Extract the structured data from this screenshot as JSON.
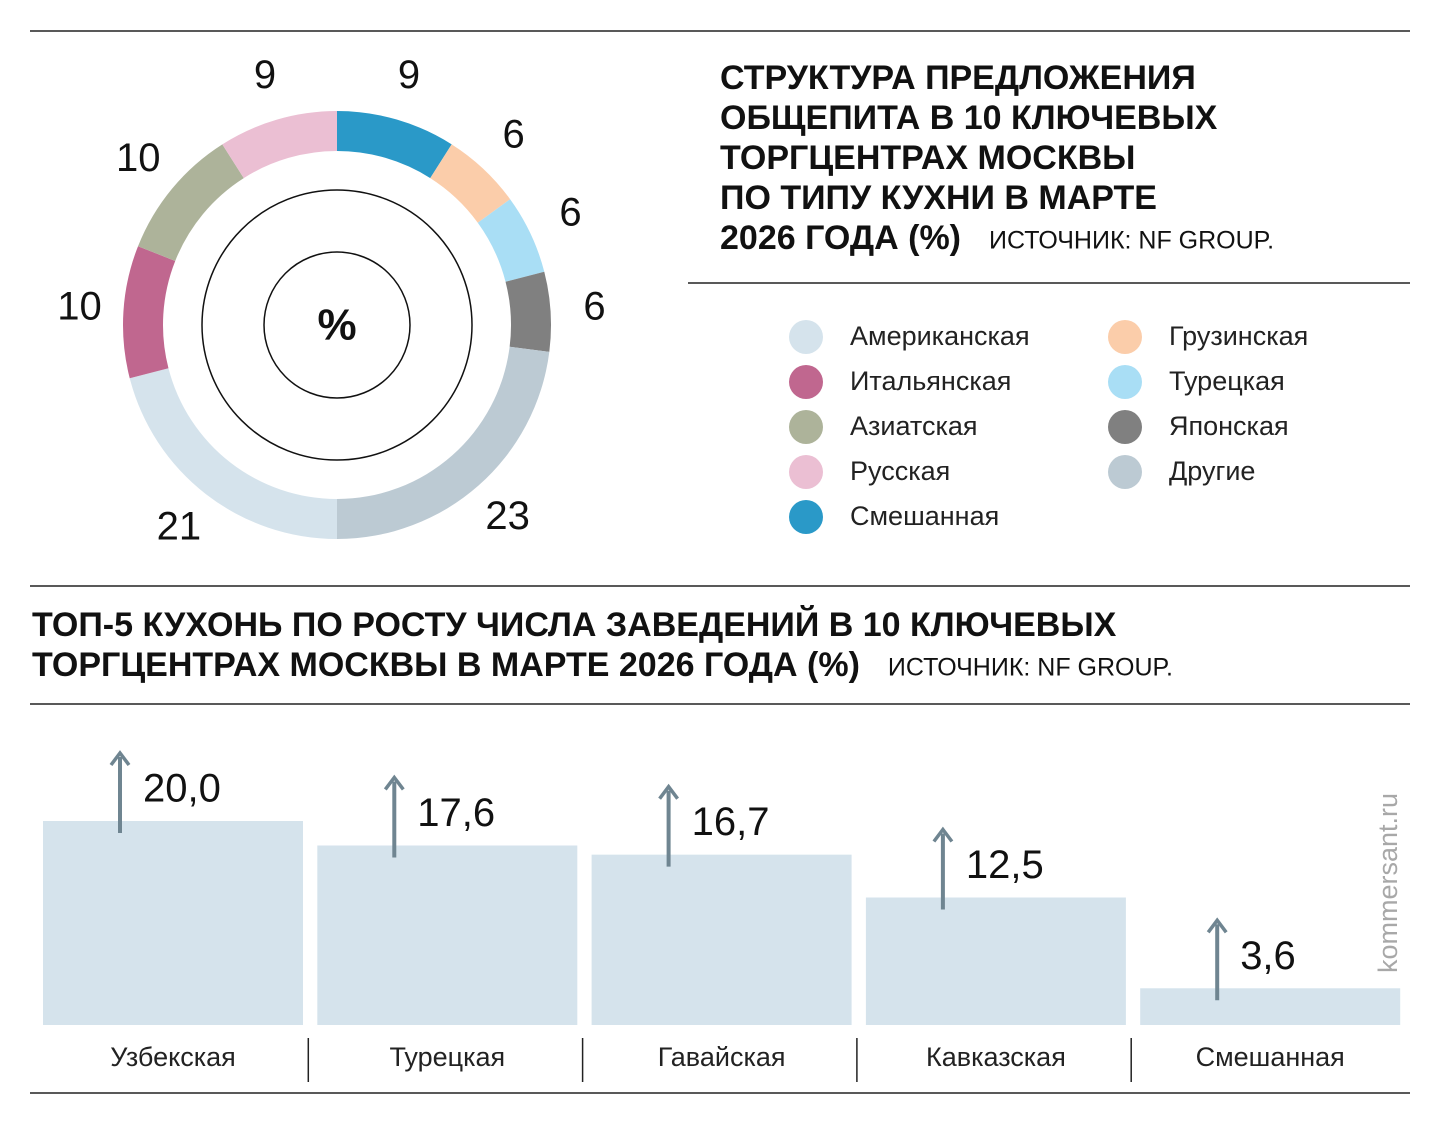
{
  "chart_data": [
    {
      "type": "donut",
      "title": [
        "СТРУКТУРА ПРЕДЛОЖЕНИЯ",
        "ОБЩЕПИТА В 10 КЛЮЧЕВЫХ",
        "ТОРГЦЕНТРАХ МОСКВЫ",
        "ПО ТИПУ КУХНИ В МАРТЕ",
        "2026 ГОДА (%)"
      ],
      "source": "ИСТОЧНИК: NF GROUP.",
      "center_label": "%",
      "categories": [
        "Американская",
        "Итальянская",
        "Азиатская",
        "Русская",
        "Смешанная",
        "Грузинская",
        "Турецкая",
        "Японская",
        "Другие"
      ],
      "values": [
        21,
        10,
        10,
        9,
        9,
        6,
        6,
        6,
        23
      ],
      "colors": [
        "#d5e3ec",
        "#c0678f",
        "#adb39a",
        "#ebbfd3",
        "#2a99c8",
        "#fbcdaa",
        "#a9def5",
        "#808080",
        "#bccad3"
      ]
    },
    {
      "type": "bar",
      "title": [
        "ТОП-5 КУХОНЬ ПО РОСТУ ЧИСЛА ЗАВЕДЕНИЙ В 10 КЛЮЧЕВЫХ",
        "ТОРГЦЕНТРАХ МОСКВЫ В МАРТЕ 2026 ГОДА (%)"
      ],
      "source": "ИСТОЧНИК: NF GROUP.",
      "categories": [
        "Узбекская",
        "Турецкая",
        "Гавайская",
        "Кавказская",
        "Смешанная"
      ],
      "values": [
        20.0,
        17.6,
        16.7,
        12.5,
        3.6
      ],
      "value_labels": [
        "20,0",
        "17,6",
        "16,7",
        "12,5",
        "3,6"
      ],
      "color": "#d5e3ec",
      "arrow_color": "#6f8591"
    }
  ],
  "credit": "kommersant.ru"
}
